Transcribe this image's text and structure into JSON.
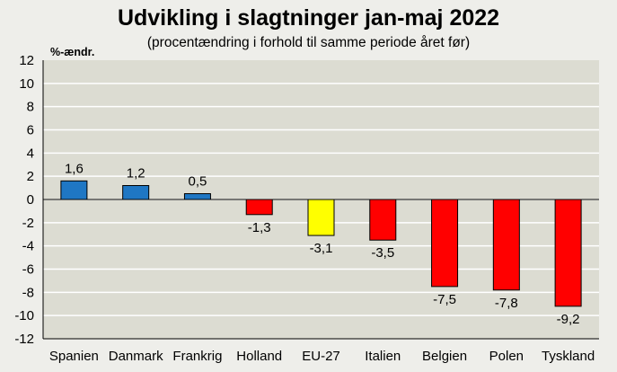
{
  "chart_data": {
    "type": "bar",
    "title": "Udvikling i slagtninger jan-maj 2022",
    "subtitle": "(procentændring i forhold til samme periode året før)",
    "ylabel": "%-ændr.",
    "xlabel": "",
    "categories": [
      "Spanien",
      "Danmark",
      "Frankrig",
      "Holland",
      "EU-27",
      "Italien",
      "Belgien",
      "Polen",
      "Tyskland"
    ],
    "values": [
      1.6,
      1.2,
      0.5,
      -1.3,
      -3.1,
      -3.5,
      -7.5,
      -7.8,
      -9.2
    ],
    "value_labels": [
      "1,6",
      "1,2",
      "0,5",
      "-1,3",
      "-3,1",
      "-3,5",
      "-7,5",
      "-7,8",
      "-9,2"
    ],
    "bar_colors": [
      "#1f77c4",
      "#1f77c4",
      "#1f77c4",
      "#ff0000",
      "#ffff00",
      "#ff0000",
      "#ff0000",
      "#ff0000",
      "#ff0000"
    ],
    "ylim": [
      -12,
      12
    ],
    "yticks": [
      12,
      10,
      8,
      6,
      4,
      2,
      0,
      -2,
      -4,
      -6,
      -8,
      -10,
      -12
    ],
    "grid": true,
    "plot_background": "#dcdcd2",
    "page_background": "#eeeeea",
    "gridline_color": "#ffffff"
  }
}
